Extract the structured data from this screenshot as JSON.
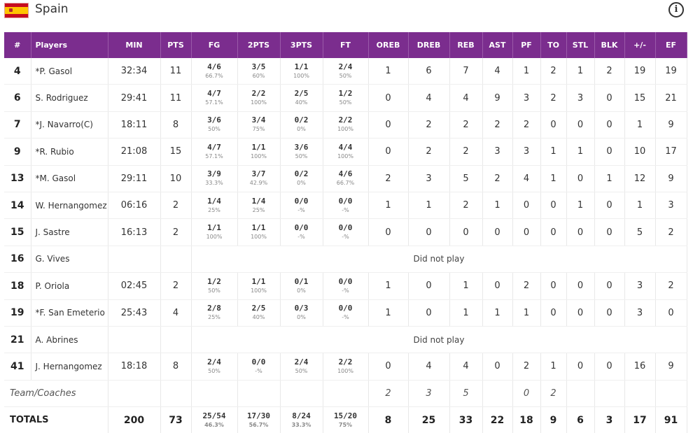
{
  "team": {
    "name": "Spain",
    "flag": "spain-flag",
    "info_icon": "info-icon"
  },
  "columns": [
    "#",
    "Players",
    "MIN",
    "PTS",
    "FG",
    "2PTS",
    "3PTS",
    "FT",
    "OREB",
    "DREB",
    "REB",
    "AST",
    "PF",
    "TO",
    "STL",
    "BLK",
    "+/-",
    "EF"
  ],
  "players": [
    {
      "num": "4",
      "name": "*P. Gasol",
      "min": "32:34",
      "pts": "11",
      "fg": "4/6",
      "fg_pct": "66.7%",
      "p2": "3/5",
      "p2_pct": "60%",
      "p3": "1/1",
      "p3_pct": "100%",
      "ft": "2/4",
      "ft_pct": "50%",
      "oreb": "1",
      "dreb": "6",
      "reb": "7",
      "ast": "4",
      "pf": "1",
      "to": "2",
      "stl": "1",
      "blk": "2",
      "pm": "19",
      "ef": "19"
    },
    {
      "num": "6",
      "name": "S. Rodriguez",
      "min": "29:41",
      "pts": "11",
      "fg": "4/7",
      "fg_pct": "57.1%",
      "p2": "2/2",
      "p2_pct": "100%",
      "p3": "2/5",
      "p3_pct": "40%",
      "ft": "1/2",
      "ft_pct": "50%",
      "oreb": "0",
      "dreb": "4",
      "reb": "4",
      "ast": "9",
      "pf": "3",
      "to": "2",
      "stl": "3",
      "blk": "0",
      "pm": "15",
      "ef": "21"
    },
    {
      "num": "7",
      "name": "*J. Navarro(C)",
      "min": "18:11",
      "pts": "8",
      "fg": "3/6",
      "fg_pct": "50%",
      "p2": "3/4",
      "p2_pct": "75%",
      "p3": "0/2",
      "p3_pct": "0%",
      "ft": "2/2",
      "ft_pct": "100%",
      "oreb": "0",
      "dreb": "2",
      "reb": "2",
      "ast": "2",
      "pf": "2",
      "to": "0",
      "stl": "0",
      "blk": "0",
      "pm": "1",
      "ef": "9"
    },
    {
      "num": "9",
      "name": "*R. Rubio",
      "min": "21:08",
      "pts": "15",
      "fg": "4/7",
      "fg_pct": "57.1%",
      "p2": "1/1",
      "p2_pct": "100%",
      "p3": "3/6",
      "p3_pct": "50%",
      "ft": "4/4",
      "ft_pct": "100%",
      "oreb": "0",
      "dreb": "2",
      "reb": "2",
      "ast": "3",
      "pf": "3",
      "to": "1",
      "stl": "1",
      "blk": "0",
      "pm": "10",
      "ef": "17"
    },
    {
      "num": "13",
      "name": "*M. Gasol",
      "min": "29:11",
      "pts": "10",
      "fg": "3/9",
      "fg_pct": "33.3%",
      "p2": "3/7",
      "p2_pct": "42.9%",
      "p3": "0/2",
      "p3_pct": "0%",
      "ft": "4/6",
      "ft_pct": "66.7%",
      "oreb": "2",
      "dreb": "3",
      "reb": "5",
      "ast": "2",
      "pf": "4",
      "to": "1",
      "stl": "0",
      "blk": "1",
      "pm": "12",
      "ef": "9"
    },
    {
      "num": "14",
      "name": "W. Hernangomez",
      "min": "06:16",
      "pts": "2",
      "fg": "1/4",
      "fg_pct": "25%",
      "p2": "1/4",
      "p2_pct": "25%",
      "p3": "0/0",
      "p3_pct": "-%",
      "ft": "0/0",
      "ft_pct": "-%",
      "oreb": "1",
      "dreb": "1",
      "reb": "2",
      "ast": "1",
      "pf": "0",
      "to": "0",
      "stl": "1",
      "blk": "0",
      "pm": "1",
      "ef": "3"
    },
    {
      "num": "15",
      "name": "J. Sastre",
      "min": "16:13",
      "pts": "2",
      "fg": "1/1",
      "fg_pct": "100%",
      "p2": "1/1",
      "p2_pct": "100%",
      "p3": "0/0",
      "p3_pct": "-%",
      "ft": "0/0",
      "ft_pct": "-%",
      "oreb": "0",
      "dreb": "0",
      "reb": "0",
      "ast": "0",
      "pf": "0",
      "to": "0",
      "stl": "0",
      "blk": "0",
      "pm": "5",
      "ef": "2"
    },
    {
      "num": "16",
      "name": "G. Vives",
      "dnp": "Did not play"
    },
    {
      "num": "18",
      "name": "P. Oriola",
      "min": "02:45",
      "pts": "2",
      "fg": "1/2",
      "fg_pct": "50%",
      "p2": "1/1",
      "p2_pct": "100%",
      "p3": "0/1",
      "p3_pct": "0%",
      "ft": "0/0",
      "ft_pct": "-%",
      "oreb": "1",
      "dreb": "0",
      "reb": "1",
      "ast": "0",
      "pf": "2",
      "to": "0",
      "stl": "0",
      "blk": "0",
      "pm": "3",
      "ef": "2"
    },
    {
      "num": "19",
      "name": "*F. San Emeterio",
      "min": "25:43",
      "pts": "4",
      "fg": "2/8",
      "fg_pct": "25%",
      "p2": "2/5",
      "p2_pct": "40%",
      "p3": "0/3",
      "p3_pct": "0%",
      "ft": "0/0",
      "ft_pct": "-%",
      "oreb": "1",
      "dreb": "0",
      "reb": "1",
      "ast": "1",
      "pf": "1",
      "to": "0",
      "stl": "0",
      "blk": "0",
      "pm": "3",
      "ef": "0"
    },
    {
      "num": "21",
      "name": "A. Abrines",
      "dnp": "Did not play"
    },
    {
      "num": "41",
      "name": "J. Hernangomez",
      "min": "18:18",
      "pts": "8",
      "fg": "2/4",
      "fg_pct": "50%",
      "p2": "0/0",
      "p2_pct": "-%",
      "p3": "2/4",
      "p3_pct": "50%",
      "ft": "2/2",
      "ft_pct": "100%",
      "oreb": "0",
      "dreb": "4",
      "reb": "4",
      "ast": "0",
      "pf": "2",
      "to": "1",
      "stl": "0",
      "blk": "0",
      "pm": "16",
      "ef": "9"
    }
  ],
  "team_coaches": {
    "label": "Team/Coaches",
    "oreb": "2",
    "dreb": "3",
    "reb": "5",
    "pf": "0",
    "to": "2"
  },
  "totals": {
    "label": "TOTALS",
    "min": "200",
    "pts": "73",
    "fg": "25/54",
    "fg_pct": "46.3%",
    "p2": "17/30",
    "p2_pct": "56.7%",
    "p3": "8/24",
    "p3_pct": "33.3%",
    "ft": "15/20",
    "ft_pct": "75%",
    "oreb": "8",
    "dreb": "25",
    "reb": "33",
    "ast": "22",
    "pf": "18",
    "to": "9",
    "stl": "6",
    "blk": "3",
    "pm": "17",
    "ef": "91"
  }
}
